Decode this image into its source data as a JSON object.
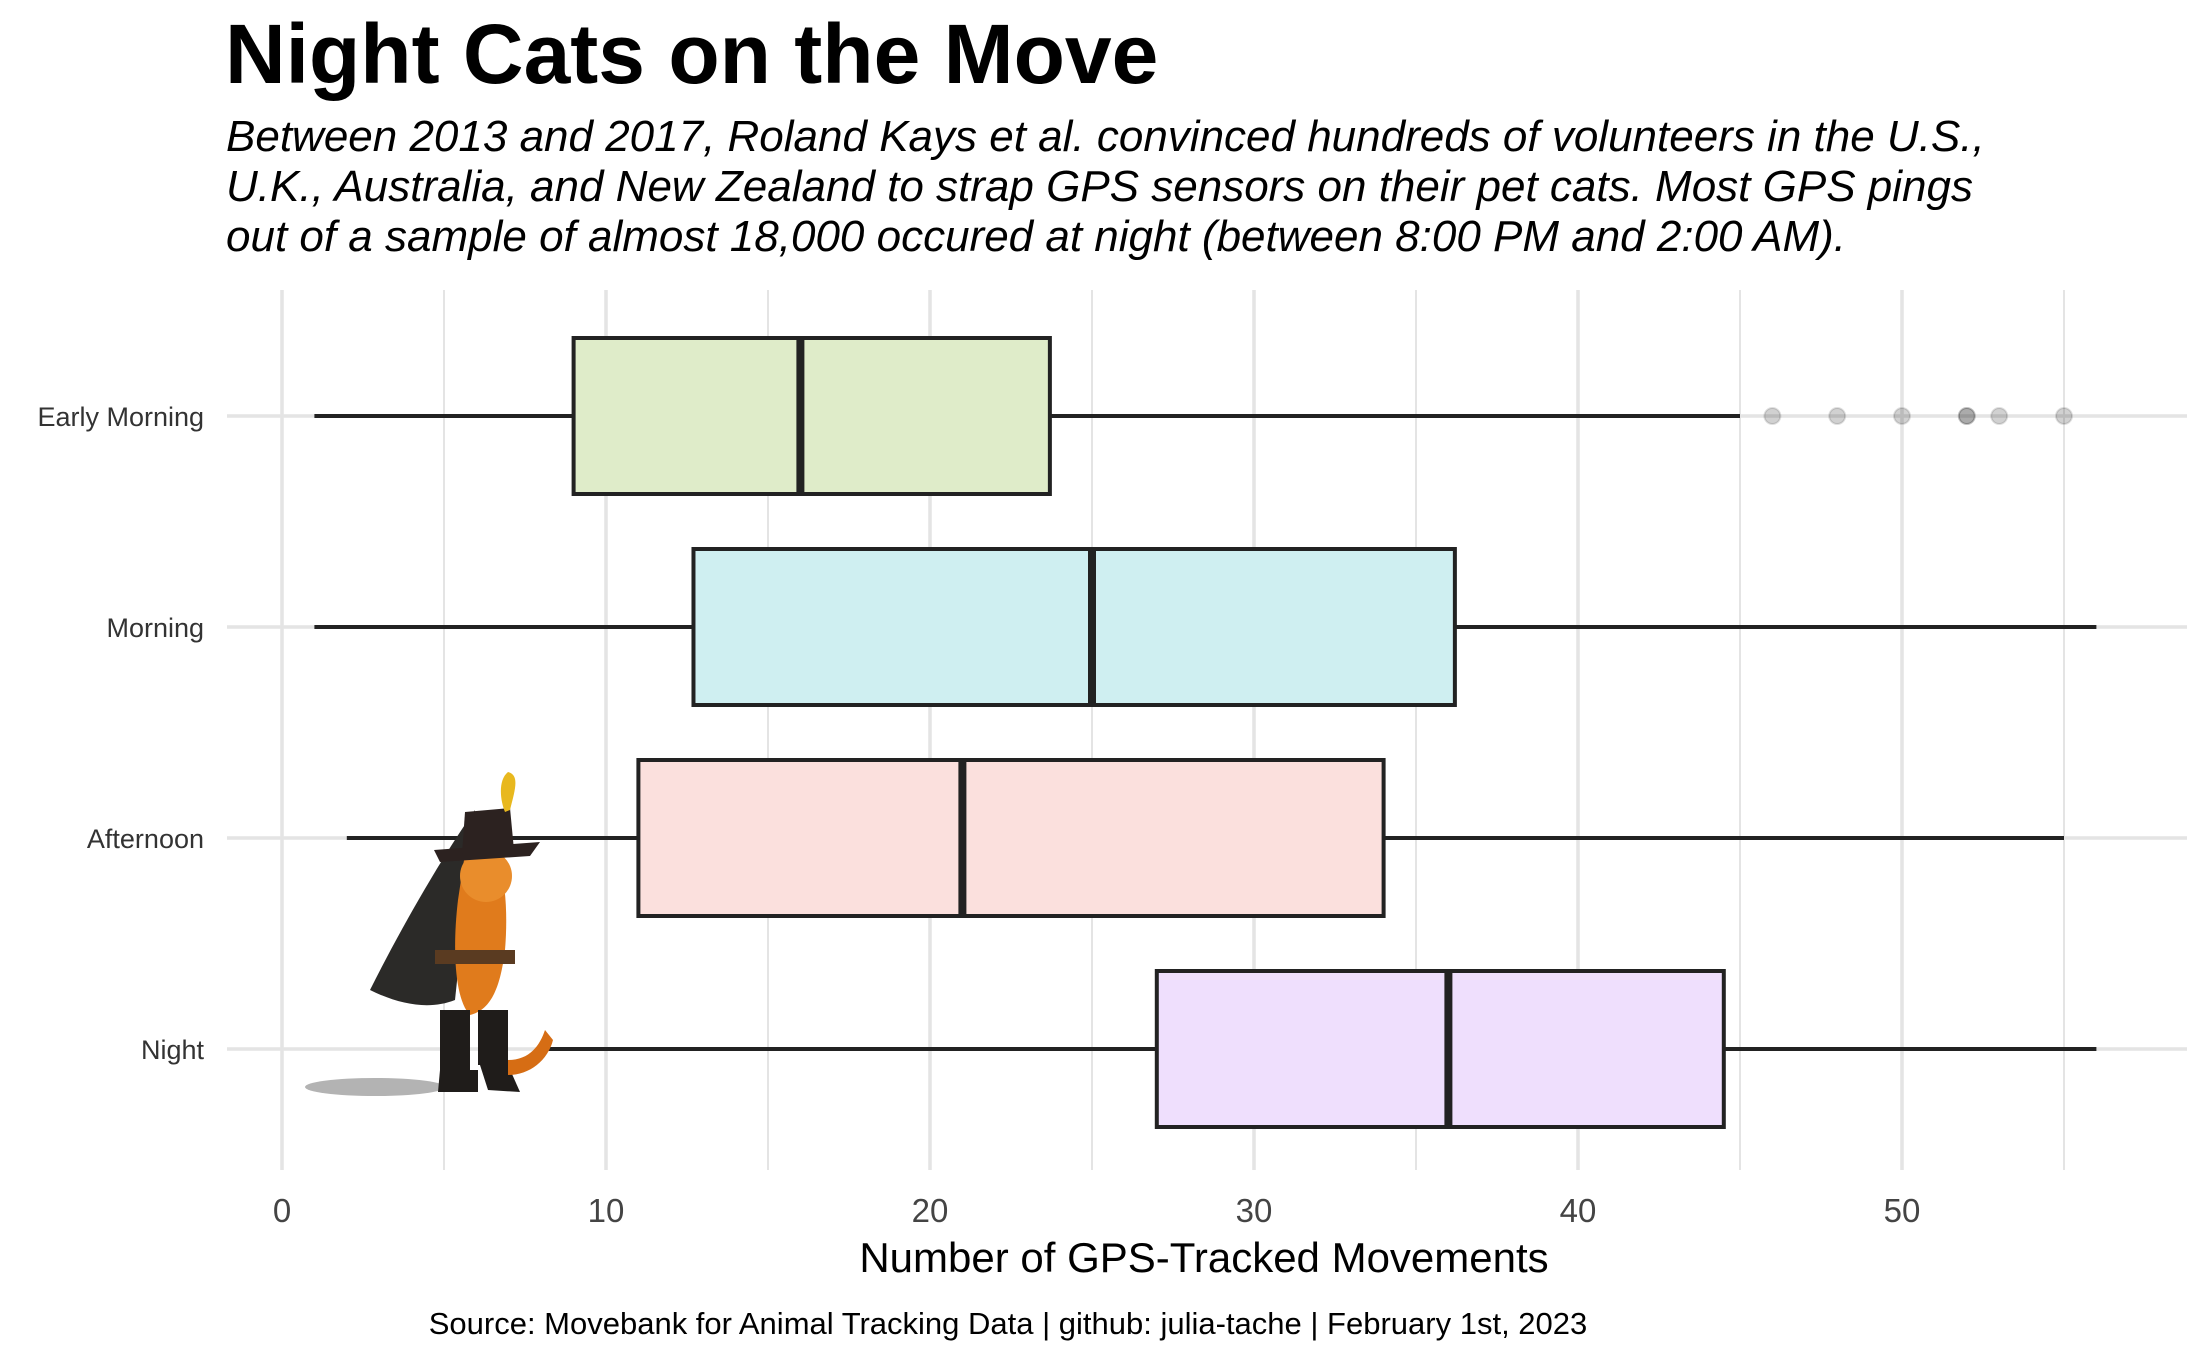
{
  "title": "Night Cats on the Move",
  "subtitle_lines": [
    "Between 2013 and 2017, Roland Kays et al. convinced hundreds of volunteers in the U.S.,",
    "U.K., Australia, and New Zealand to strap GPS sensors on their pet cats. Most GPS pings",
    "out of a sample of almost 18,000 occured at night (between 8:00 PM and 2:00 AM)."
  ],
  "caption": "Source: Movebank for Animal Tracking Data | github: julia-tache | February 1st, 2023",
  "chart_data": {
    "type": "boxplot",
    "orientation": "horizontal",
    "xlabel": "Number of GPS-Tracked Movements",
    "ylabel": "",
    "xlim": [
      0,
      58
    ],
    "x_ticks": [
      0,
      10,
      20,
      30,
      40,
      50
    ],
    "grid": true,
    "legend": "none",
    "categories": [
      "Early Morning",
      "Morning",
      "Afternoon",
      "Night"
    ],
    "series": [
      {
        "category": "Early Morning",
        "min": 1,
        "q1": 9,
        "median": 16,
        "q3": 23.7,
        "max": 45,
        "outliers": [
          46,
          48,
          50,
          52,
          52,
          53,
          55
        ],
        "fill": "#dfecc9"
      },
      {
        "category": "Morning",
        "min": 1,
        "q1": 12.7,
        "median": 25,
        "q3": 36.2,
        "max": 56,
        "outliers": [],
        "fill": "#cfeff1"
      },
      {
        "category": "Afternoon",
        "min": 2,
        "q1": 11,
        "median": 21,
        "q3": 34,
        "max": 55,
        "outliers": [],
        "fill": "#fbe0dd"
      },
      {
        "category": "Night",
        "min": 8,
        "q1": 27,
        "median": 36,
        "q3": 44.5,
        "max": 56,
        "outliers": [],
        "fill": "#efdffd"
      }
    ],
    "annotation_image": "cat-in-boots-illustration"
  }
}
